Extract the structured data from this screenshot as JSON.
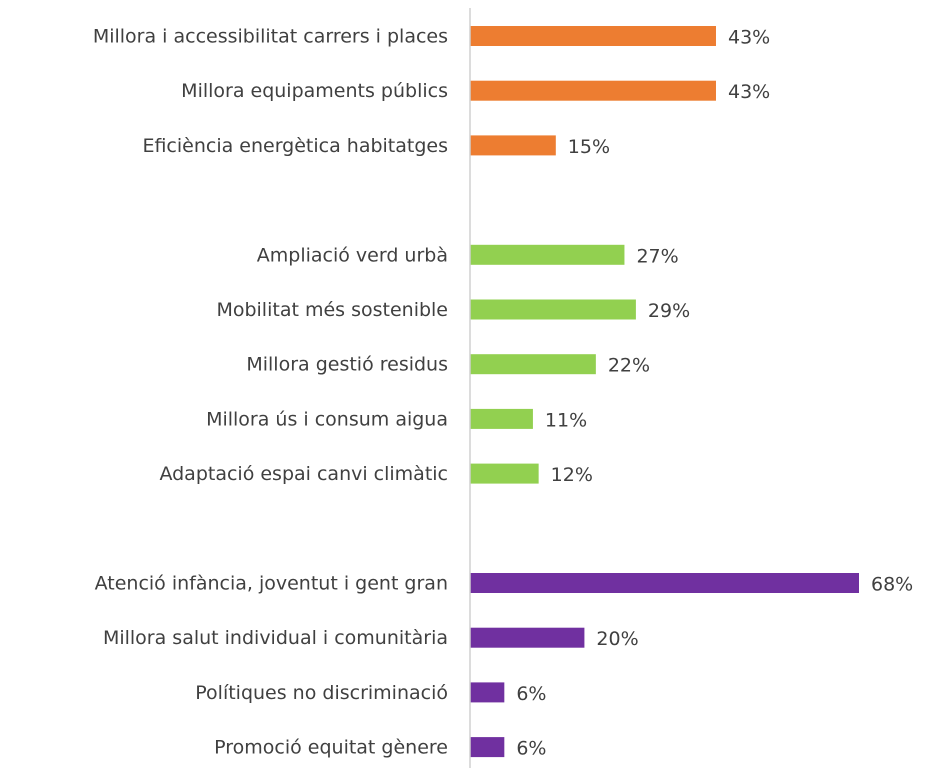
{
  "chart_data": {
    "type": "barh",
    "categories": [
      "Millora i accessibilitat carrers i places",
      "Millora equipaments públics",
      "Eficiència energètica habitatges",
      null,
      "Ampliació verd urbà",
      "Mobilitat més sostenible",
      "Millora gestió residus",
      "Millora ús i consum aigua",
      "Adaptació espai canvi climàtic",
      null,
      "Atenció infància, joventut i gent gran",
      "Millora salut individual i comunitària",
      "Polítiques no discriminació",
      "Promoció equitat gènere"
    ],
    "values": [
      43,
      43,
      15,
      null,
      27,
      29,
      22,
      11,
      12,
      null,
      68,
      20,
      6,
      6
    ],
    "value_labels": [
      "43%",
      "43%",
      "15%",
      null,
      "27%",
      "29%",
      "22%",
      "11%",
      "12%",
      null,
      "68%",
      "20%",
      "6%",
      "6%"
    ],
    "colors": [
      "#ed7d31",
      "#ed7d31",
      "#ed7d31",
      null,
      "#92d050",
      "#92d050",
      "#92d050",
      "#92d050",
      "#92d050",
      null,
      "#7030a0",
      "#7030a0",
      "#7030a0",
      "#7030a0"
    ]
  }
}
